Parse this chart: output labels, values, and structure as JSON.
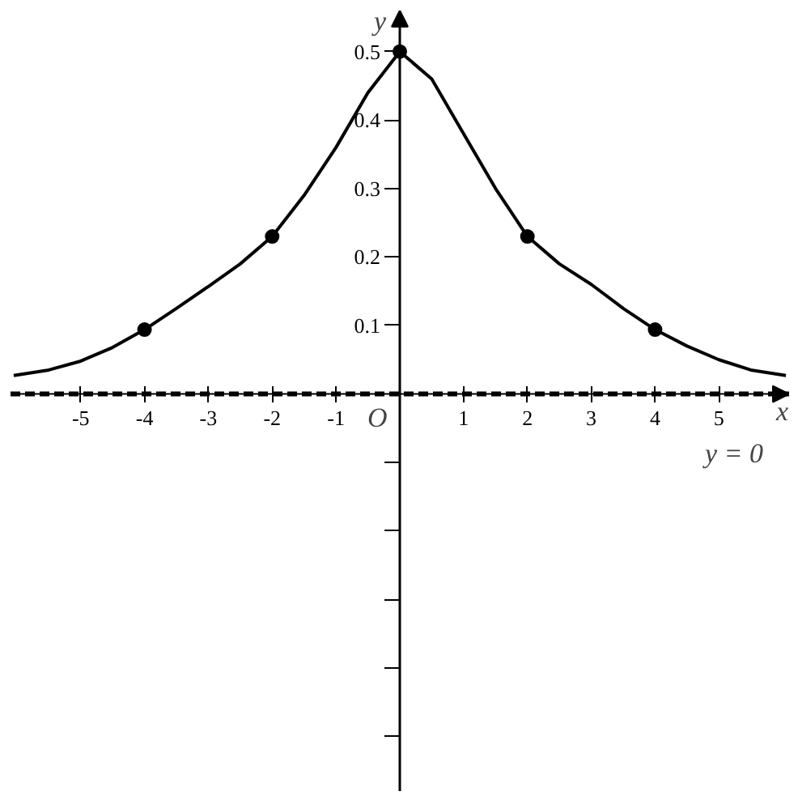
{
  "chart_data": {
    "type": "line",
    "xlabel": "x",
    "ylabel": "y",
    "xlim": [
      -6.1,
      6.1
    ],
    "ylim": [
      -0.58,
      0.56
    ],
    "xticks": [
      -5,
      -4,
      -3,
      -2,
      -1,
      1,
      2,
      3,
      4,
      5
    ],
    "yticks": [
      {
        "value": -0.5,
        "label": null
      },
      {
        "value": -0.4,
        "label": null
      },
      {
        "value": -0.3,
        "label": null
      },
      {
        "value": -0.2,
        "label": null
      },
      {
        "value": -0.1,
        "label": null
      },
      0.1,
      0.2,
      0.3,
      0.4,
      0.5
    ],
    "grid": false,
    "series": [
      {
        "color": "#000000",
        "marker": "none",
        "x": [
          -6.05,
          -5.5,
          -5,
          -4.5,
          -4,
          -3.5,
          -3,
          -2.5,
          -2,
          -1.5,
          -1,
          -0.5,
          0,
          0.5,
          1,
          1.5,
          2,
          2.5,
          3,
          3.5,
          4,
          4.5,
          5,
          5.5,
          6.05
        ],
        "values": [
          0.027,
          0.035,
          0.048,
          0.068,
          0.094,
          0.125,
          0.157,
          0.19,
          0.23,
          0.29,
          0.36,
          0.44,
          0.5,
          0.46,
          0.38,
          0.3,
          0.23,
          0.19,
          0.16,
          0.125,
          0.094,
          0.07,
          0.05,
          0.035,
          0.027
        ]
      },
      {
        "type": "scatter",
        "color": "#000000",
        "marker": "circle",
        "x": [
          -4,
          -2,
          0,
          2,
          4
        ],
        "values": [
          0.094,
          0.23,
          0.5,
          0.23,
          0.094
        ]
      }
    ],
    "ref_lines": [
      {
        "axis": "y",
        "value": 0,
        "label": "y = 0",
        "line_style": "dashed",
        "color": "#000000"
      }
    ],
    "annotations": [
      {
        "text": "O",
        "x": 0,
        "y": 0
      }
    ]
  }
}
